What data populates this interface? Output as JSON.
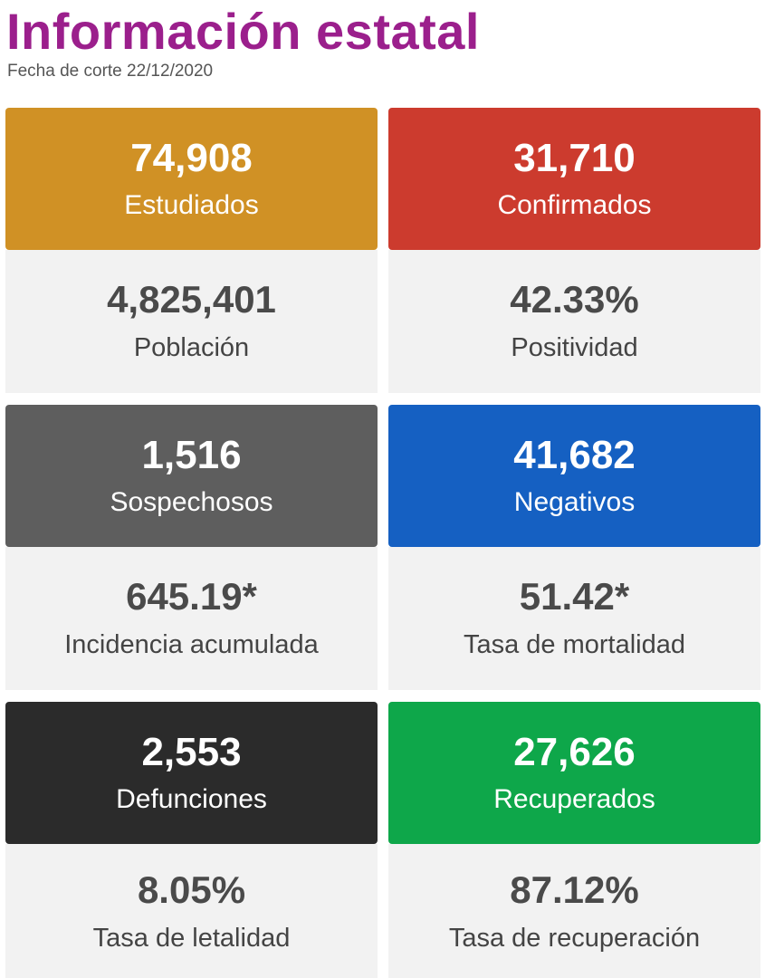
{
  "header": {
    "title": "Información estatal",
    "cut_date": "Fecha de corte 22/12/2020"
  },
  "colors": {
    "title": "#9b1f8c",
    "estudiados": "#d09125",
    "confirmados": "#cc3b2e",
    "sospechosos": "#5e5e5e",
    "negativos": "#1560c2",
    "defunciones": "#2b2b2b",
    "recuperados": "#0ea74a",
    "body_bg": "#f2f2f2"
  },
  "cards": {
    "estudiados": {
      "value": "74,908",
      "label": "Estudiados"
    },
    "confirmados": {
      "value": "31,710",
      "label": "Confirmados"
    },
    "poblacion": {
      "value": "4,825,401",
      "label": "Población"
    },
    "positividad": {
      "value": "42.33%",
      "label": "Positividad"
    },
    "sospechosos": {
      "value": "1,516",
      "label": "Sospechosos"
    },
    "negativos": {
      "value": "41,682",
      "label": "Negativos"
    },
    "incidencia": {
      "value": "645.19*",
      "label": "Incidencia acumulada"
    },
    "mortalidad": {
      "value": "51.42*",
      "label": "Tasa de mortalidad"
    },
    "defunciones": {
      "value": "2,553",
      "label": "Defunciones"
    },
    "recuperados": {
      "value": "27,626",
      "label": "Recuperados"
    },
    "letalidad": {
      "value": "8.05%",
      "label": "Tasa de letalidad"
    },
    "recuperacion": {
      "value": "87.12%",
      "label": "Tasa de recuperación"
    }
  }
}
